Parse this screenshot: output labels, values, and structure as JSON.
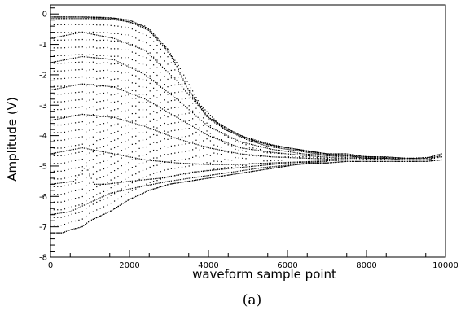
{
  "chart_data": {
    "type": "scatter",
    "title": "",
    "xlabel": "waveform sample point",
    "ylabel": "Amplitude (V)",
    "xlim": [
      0,
      10000
    ],
    "ylim": [
      -8,
      0.3
    ],
    "x_ticks": [
      0,
      2000,
      4000,
      6000,
      8000,
      10000
    ],
    "y_ticks": [
      0,
      -1,
      -2,
      -3,
      -4,
      -5,
      -6,
      -7,
      -8
    ],
    "grid": false,
    "legend": "none",
    "marker_color": "#000000",
    "caption": "(a)",
    "envelope": {
      "upper": [
        [
          0,
          -0.1
        ],
        [
          500,
          -0.1
        ],
        [
          1000,
          -0.1
        ],
        [
          1500,
          -0.12
        ],
        [
          2000,
          -0.2
        ],
        [
          2500,
          -0.5
        ],
        [
          3000,
          -1.2
        ],
        [
          3500,
          -2.5
        ],
        [
          4000,
          -3.4
        ],
        [
          4500,
          -3.8
        ],
        [
          5000,
          -4.1
        ],
        [
          5500,
          -4.3
        ],
        [
          6000,
          -4.4
        ],
        [
          6500,
          -4.5
        ],
        [
          7000,
          -4.6
        ],
        [
          7500,
          -4.6
        ],
        [
          8000,
          -4.7
        ],
        [
          8500,
          -4.7
        ],
        [
          9000,
          -4.75
        ],
        [
          9500,
          -4.75
        ],
        [
          9900,
          -4.6
        ]
      ],
      "lower": [
        [
          0,
          -7.2
        ],
        [
          300,
          -7.2
        ],
        [
          500,
          -7.1
        ],
        [
          800,
          -7.0
        ],
        [
          1000,
          -6.8
        ],
        [
          1500,
          -6.5
        ],
        [
          2000,
          -6.1
        ],
        [
          2500,
          -5.8
        ],
        [
          3000,
          -5.6
        ],
        [
          3500,
          -5.5
        ],
        [
          4000,
          -5.4
        ],
        [
          4500,
          -5.3
        ],
        [
          5000,
          -5.2
        ],
        [
          5500,
          -5.1
        ],
        [
          6000,
          -5.0
        ],
        [
          6500,
          -4.9
        ],
        [
          7000,
          -4.9
        ],
        [
          7500,
          -4.85
        ],
        [
          8000,
          -4.85
        ],
        [
          8500,
          -4.85
        ],
        [
          9000,
          -4.85
        ],
        [
          9500,
          -4.85
        ],
        [
          9900,
          -4.8
        ]
      ]
    },
    "series": [
      {
        "points": [
          [
            0,
            -0.1
          ],
          [
            800,
            -0.1
          ],
          [
            1600,
            -0.15
          ],
          [
            2400,
            -0.4
          ],
          [
            3200,
            -1.6
          ],
          [
            3800,
            -3.0
          ],
          [
            4400,
            -3.8
          ],
          [
            5200,
            -4.2
          ],
          [
            6000,
            -4.4
          ],
          [
            7000,
            -4.6
          ],
          [
            8000,
            -4.7
          ],
          [
            9000,
            -4.75
          ],
          [
            9900,
            -4.7
          ]
        ]
      },
      {
        "points": [
          [
            0,
            -0.8
          ],
          [
            800,
            -0.6
          ],
          [
            1600,
            -0.8
          ],
          [
            2400,
            -1.2
          ],
          [
            3200,
            -2.2
          ],
          [
            4000,
            -3.4
          ],
          [
            4800,
            -4.0
          ],
          [
            5600,
            -4.3
          ],
          [
            6400,
            -4.5
          ],
          [
            7200,
            -4.65
          ],
          [
            8200,
            -4.7
          ],
          [
            9200,
            -4.75
          ]
        ]
      },
      {
        "points": [
          [
            0,
            -1.6
          ],
          [
            800,
            -1.4
          ],
          [
            1600,
            -1.5
          ],
          [
            2400,
            -2.0
          ],
          [
            3200,
            -2.8
          ],
          [
            4000,
            -3.7
          ],
          [
            4800,
            -4.2
          ],
          [
            5600,
            -4.45
          ],
          [
            6400,
            -4.6
          ],
          [
            7400,
            -4.7
          ],
          [
            8400,
            -4.75
          ],
          [
            9400,
            -4.75
          ]
        ]
      },
      {
        "points": [
          [
            0,
            -2.5
          ],
          [
            800,
            -2.3
          ],
          [
            1600,
            -2.4
          ],
          [
            2400,
            -2.8
          ],
          [
            3200,
            -3.4
          ],
          [
            4000,
            -4.0
          ],
          [
            4800,
            -4.4
          ],
          [
            5600,
            -4.55
          ],
          [
            6400,
            -4.65
          ],
          [
            7400,
            -4.75
          ],
          [
            8400,
            -4.75
          ]
        ]
      },
      {
        "points": [
          [
            0,
            -3.5
          ],
          [
            800,
            -3.3
          ],
          [
            1600,
            -3.4
          ],
          [
            2400,
            -3.7
          ],
          [
            3200,
            -4.1
          ],
          [
            4000,
            -4.4
          ],
          [
            4800,
            -4.6
          ],
          [
            5600,
            -4.7
          ],
          [
            6600,
            -4.75
          ],
          [
            7600,
            -4.8
          ]
        ]
      },
      {
        "points": [
          [
            0,
            -4.6
          ],
          [
            800,
            -4.4
          ],
          [
            1600,
            -4.6
          ],
          [
            2400,
            -4.8
          ],
          [
            3200,
            -4.9
          ],
          [
            4000,
            -4.95
          ],
          [
            4800,
            -4.95
          ],
          [
            5600,
            -4.9
          ],
          [
            6600,
            -4.85
          ],
          [
            7600,
            -4.8
          ]
        ]
      },
      {
        "points": [
          [
            0,
            -5.6
          ],
          [
            600,
            -5.5
          ],
          [
            900,
            -5.0
          ],
          [
            1100,
            -5.6
          ],
          [
            1400,
            -5.6
          ],
          [
            2000,
            -5.5
          ],
          [
            2800,
            -5.4
          ],
          [
            3600,
            -5.2
          ],
          [
            4400,
            -5.1
          ],
          [
            5200,
            -5.0
          ],
          [
            6000,
            -4.9
          ],
          [
            7000,
            -4.85
          ]
        ]
      },
      {
        "points": [
          [
            0,
            -6.6
          ],
          [
            500,
            -6.5
          ],
          [
            1000,
            -6.2
          ],
          [
            1500,
            -5.9
          ],
          [
            2200,
            -5.7
          ],
          [
            3000,
            -5.5
          ],
          [
            3800,
            -5.35
          ],
          [
            4600,
            -5.2
          ],
          [
            5400,
            -5.05
          ],
          [
            6200,
            -4.95
          ],
          [
            7000,
            -4.9
          ]
        ]
      }
    ]
  }
}
